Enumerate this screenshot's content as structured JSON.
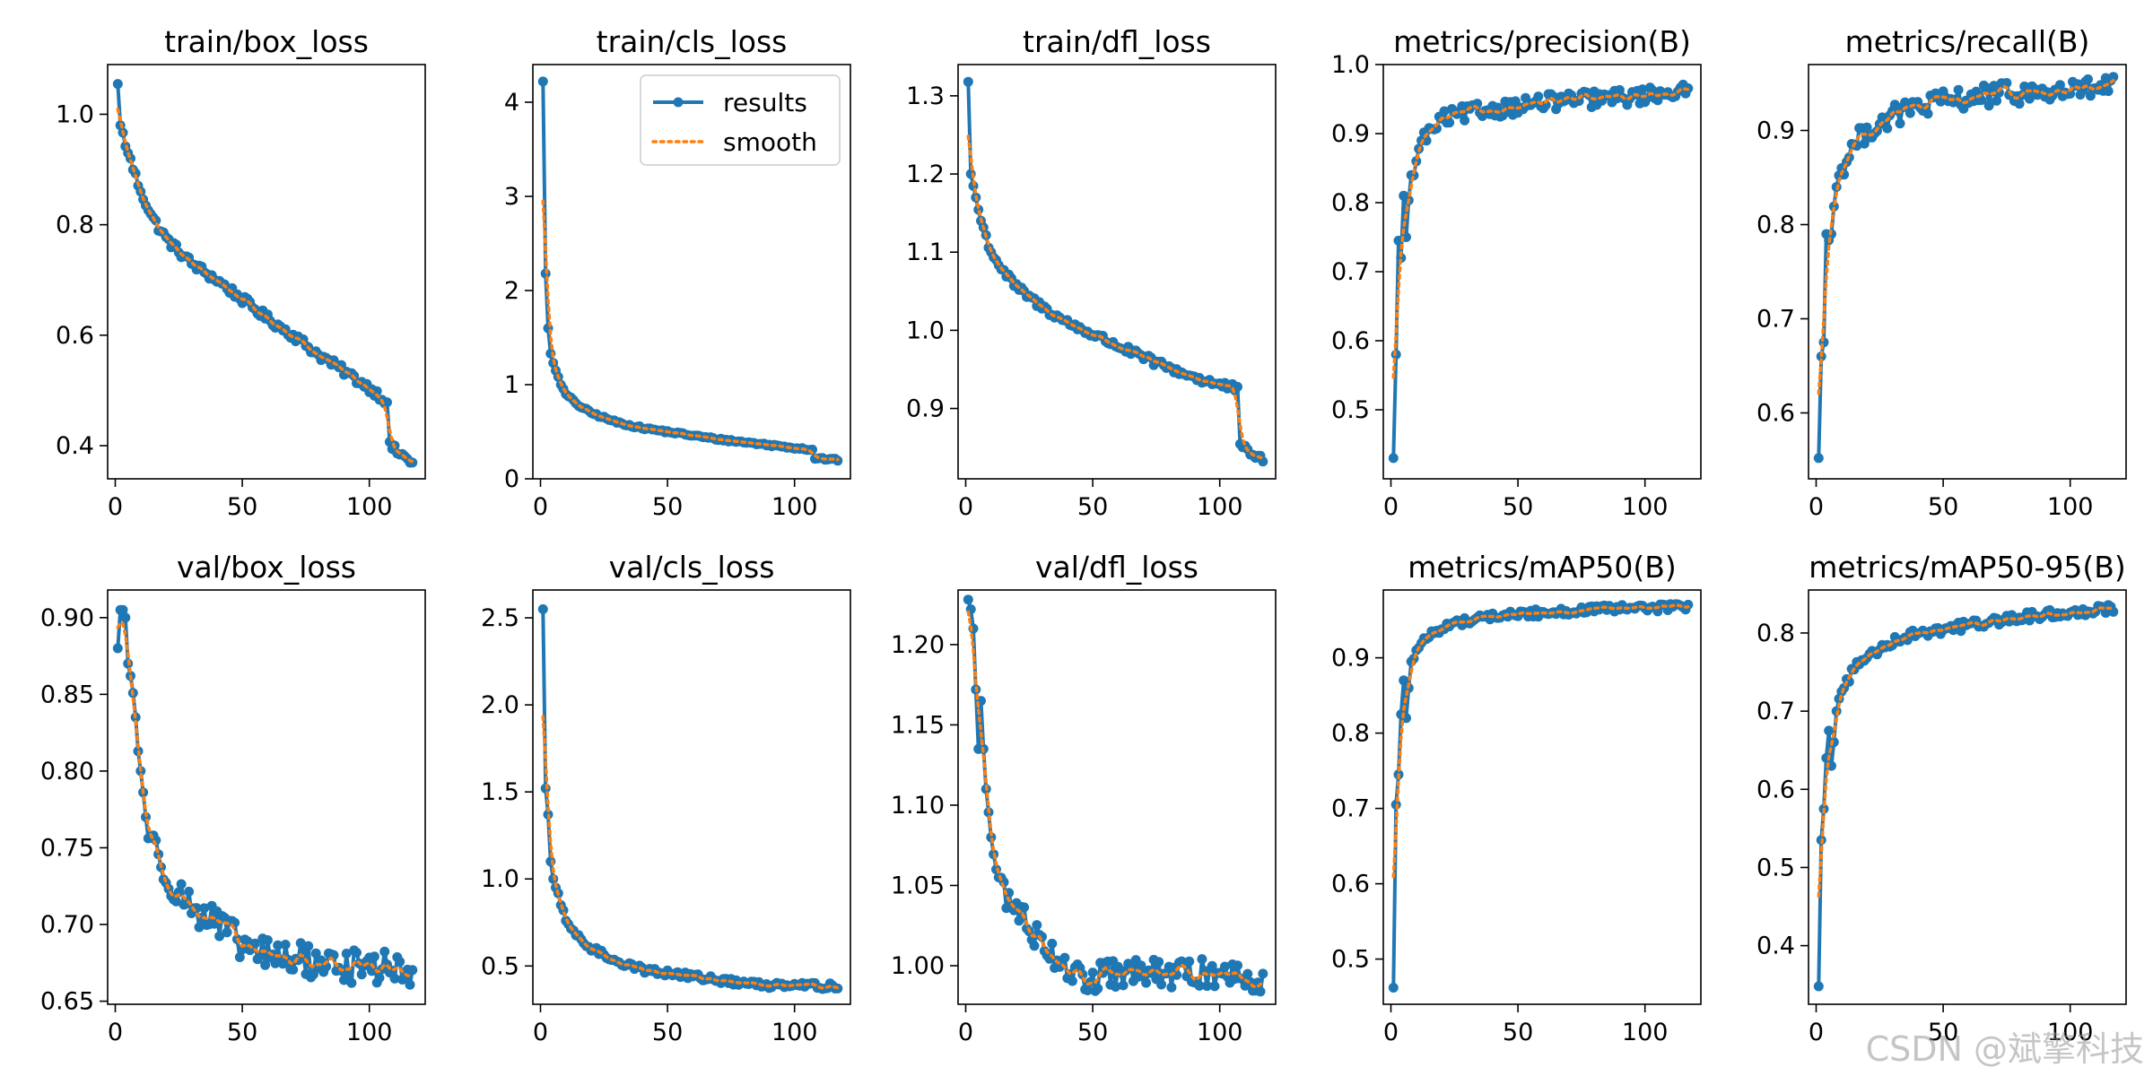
{
  "watermark": "CSDN @斌擎科技",
  "legend": {
    "results": "results",
    "smooth": "smooth"
  },
  "colors": {
    "results": "#1f77b4",
    "smooth": "#ff7f0e"
  },
  "chart_data": [
    {
      "type": "line",
      "title": "train/box_loss",
      "xlim": [
        -3,
        122
      ],
      "ylim": [
        0.34,
        1.09
      ],
      "xticks": [
        0,
        50,
        100
      ],
      "yticks": [
        0.4,
        0.6,
        0.8,
        1.0
      ],
      "ytick_labels": [
        "0.4",
        "0.6",
        "0.8",
        "1.0"
      ],
      "decay": "linear",
      "final": 0.37,
      "anchors": [
        [
          1,
          1.055
        ],
        [
          2,
          0.98
        ],
        [
          5,
          0.93
        ],
        [
          10,
          0.86
        ],
        [
          15,
          0.81
        ],
        [
          20,
          0.775
        ],
        [
          30,
          0.73
        ],
        [
          40,
          0.7
        ],
        [
          50,
          0.665
        ],
        [
          60,
          0.63
        ],
        [
          70,
          0.6
        ],
        [
          80,
          0.565
        ],
        [
          90,
          0.535
        ],
        [
          100,
          0.505
        ],
        [
          107,
          0.48
        ],
        [
          108,
          0.4
        ],
        [
          112,
          0.385
        ],
        [
          117,
          0.37
        ]
      ],
      "noise": 0.008,
      "n_epochs": 117
    },
    {
      "type": "line",
      "title": "train/cls_loss",
      "xlim": [
        -3,
        122
      ],
      "ylim": [
        0,
        4.4
      ],
      "xticks": [
        0,
        50,
        100
      ],
      "yticks": [
        0,
        1,
        2,
        3,
        4
      ],
      "ytick_labels": [
        "0",
        "1",
        "2",
        "3",
        "4"
      ],
      "legend_location": "top-right",
      "anchors": [
        [
          1,
          4.22
        ],
        [
          2,
          2.18
        ],
        [
          3,
          1.6
        ],
        [
          4,
          1.33
        ],
        [
          6,
          1.15
        ],
        [
          8,
          1.0
        ],
        [
          10,
          0.9
        ],
        [
          15,
          0.78
        ],
        [
          20,
          0.7
        ],
        [
          30,
          0.6
        ],
        [
          40,
          0.54
        ],
        [
          50,
          0.5
        ],
        [
          60,
          0.46
        ],
        [
          70,
          0.42
        ],
        [
          80,
          0.39
        ],
        [
          90,
          0.36
        ],
        [
          100,
          0.33
        ],
        [
          107,
          0.31
        ],
        [
          108,
          0.22
        ],
        [
          117,
          0.2
        ]
      ],
      "noise": 0.012,
      "n_epochs": 117
    },
    {
      "type": "line",
      "title": "train/dfl_loss",
      "xlim": [
        -3,
        122
      ],
      "ylim": [
        0.81,
        1.34
      ],
      "xticks": [
        0,
        50,
        100
      ],
      "yticks": [
        0.9,
        1.0,
        1.1,
        1.2,
        1.3
      ],
      "ytick_labels": [
        "0.9",
        "1.0",
        "1.1",
        "1.2",
        "1.3"
      ],
      "anchors": [
        [
          1,
          1.318
        ],
        [
          2,
          1.2
        ],
        [
          4,
          1.17
        ],
        [
          6,
          1.14
        ],
        [
          10,
          1.1
        ],
        [
          15,
          1.075
        ],
        [
          20,
          1.055
        ],
        [
          30,
          1.03
        ],
        [
          40,
          1.01
        ],
        [
          50,
          0.995
        ],
        [
          60,
          0.98
        ],
        [
          70,
          0.965
        ],
        [
          80,
          0.952
        ],
        [
          90,
          0.94
        ],
        [
          100,
          0.93
        ],
        [
          107,
          0.925
        ],
        [
          108,
          0.85
        ],
        [
          112,
          0.845
        ],
        [
          117,
          0.832
        ]
      ],
      "noise": 0.005,
      "n_epochs": 117
    },
    {
      "type": "line",
      "title": "metrics/precision(B)",
      "xlim": [
        -3,
        122
      ],
      "ylim": [
        0.4,
        1.0
      ],
      "xticks": [
        0,
        50,
        100
      ],
      "yticks": [
        0.5,
        0.6,
        0.7,
        0.8,
        0.9,
        1.0
      ],
      "ytick_labels": [
        "0.5",
        "0.6",
        "0.7",
        "0.8",
        "0.9",
        "1.0"
      ],
      "anchors": [
        [
          1,
          0.43
        ],
        [
          2,
          0.58
        ],
        [
          3,
          0.745
        ],
        [
          4,
          0.72
        ],
        [
          5,
          0.81
        ],
        [
          6,
          0.75
        ],
        [
          8,
          0.84
        ],
        [
          10,
          0.86
        ],
        [
          12,
          0.89
        ],
        [
          15,
          0.9
        ],
        [
          20,
          0.92
        ],
        [
          30,
          0.93
        ],
        [
          40,
          0.935
        ],
        [
          50,
          0.94
        ],
        [
          60,
          0.945
        ],
        [
          70,
          0.948
        ],
        [
          80,
          0.95
        ],
        [
          90,
          0.952
        ],
        [
          100,
          0.955
        ],
        [
          110,
          0.962
        ],
        [
          117,
          0.958
        ]
      ],
      "noise": 0.012,
      "n_epochs": 117
    },
    {
      "type": "line",
      "title": "metrics/recall(B)",
      "xlim": [
        -3,
        122
      ],
      "ylim": [
        0.53,
        0.97
      ],
      "xticks": [
        0,
        50,
        100
      ],
      "yticks": [
        0.6,
        0.7,
        0.8,
        0.9
      ],
      "ytick_labels": [
        "0.6",
        "0.7",
        "0.8",
        "0.9"
      ],
      "anchors": [
        [
          1,
          0.552
        ],
        [
          2,
          0.66
        ],
        [
          3,
          0.675
        ],
        [
          4,
          0.79
        ],
        [
          6,
          0.79
        ],
        [
          8,
          0.84
        ],
        [
          10,
          0.86
        ],
        [
          15,
          0.885
        ],
        [
          20,
          0.9
        ],
        [
          30,
          0.915
        ],
        [
          40,
          0.925
        ],
        [
          50,
          0.93
        ],
        [
          60,
          0.935
        ],
        [
          70,
          0.938
        ],
        [
          80,
          0.94
        ],
        [
          90,
          0.94
        ],
        [
          100,
          0.942
        ],
        [
          110,
          0.945
        ],
        [
          117,
          0.948
        ]
      ],
      "noise": 0.012,
      "n_epochs": 117
    },
    {
      "type": "line",
      "title": "val/box_loss",
      "xlim": [
        -3,
        122
      ],
      "ylim": [
        0.648,
        0.918
      ],
      "xticks": [
        0,
        50,
        100
      ],
      "yticks": [
        0.65,
        0.7,
        0.75,
        0.8,
        0.85,
        0.9
      ],
      "ytick_labels": [
        "0.65",
        "0.70",
        "0.75",
        "0.80",
        "0.85",
        "0.90"
      ],
      "anchors": [
        [
          1,
          0.88
        ],
        [
          2,
          0.905
        ],
        [
          3,
          0.905
        ],
        [
          4,
          0.9
        ],
        [
          5,
          0.87
        ],
        [
          6,
          0.862
        ],
        [
          8,
          0.835
        ],
        [
          10,
          0.8
        ],
        [
          12,
          0.77
        ],
        [
          15,
          0.75
        ],
        [
          20,
          0.735
        ],
        [
          25,
          0.72
        ],
        [
          30,
          0.712
        ],
        [
          40,
          0.7
        ],
        [
          50,
          0.686
        ],
        [
          60,
          0.68
        ],
        [
          70,
          0.678
        ],
        [
          80,
          0.675
        ],
        [
          90,
          0.673
        ],
        [
          100,
          0.672
        ],
        [
          110,
          0.672
        ],
        [
          117,
          0.665
        ]
      ],
      "noise": 0.011,
      "n_epochs": 117
    },
    {
      "type": "line",
      "title": "val/cls_loss",
      "xlim": [
        -3,
        122
      ],
      "ylim": [
        0.28,
        2.66
      ],
      "xticks": [
        0,
        50,
        100
      ],
      "yticks": [
        0.5,
        1.0,
        1.5,
        2.0,
        2.5
      ],
      "ytick_labels": [
        "0.5",
        "1.0",
        "1.5",
        "2.0",
        "2.5"
      ],
      "anchors": [
        [
          1,
          2.55
        ],
        [
          2,
          1.52
        ],
        [
          3,
          1.37
        ],
        [
          4,
          1.1
        ],
        [
          5,
          1.0
        ],
        [
          6,
          0.95
        ],
        [
          8,
          0.85
        ],
        [
          10,
          0.76
        ],
        [
          15,
          0.66
        ],
        [
          20,
          0.6
        ],
        [
          30,
          0.53
        ],
        [
          40,
          0.48
        ],
        [
          50,
          0.46
        ],
        [
          60,
          0.44
        ],
        [
          70,
          0.42
        ],
        [
          80,
          0.4
        ],
        [
          90,
          0.39
        ],
        [
          100,
          0.4
        ],
        [
          110,
          0.385
        ],
        [
          117,
          0.38
        ]
      ],
      "noise": 0.018,
      "n_epochs": 117
    },
    {
      "type": "line",
      "title": "val/dfl_loss",
      "xlim": [
        -3,
        122
      ],
      "ylim": [
        0.976,
        1.234
      ],
      "xticks": [
        0,
        50,
        100
      ],
      "yticks": [
        1.0,
        1.05,
        1.1,
        1.15,
        1.2
      ],
      "ytick_labels": [
        "1.00",
        "1.05",
        "1.10",
        "1.15",
        "1.20"
      ],
      "anchors": [
        [
          1,
          1.228
        ],
        [
          2,
          1.222
        ],
        [
          3,
          1.21
        ],
        [
          4,
          1.172
        ],
        [
          5,
          1.135
        ],
        [
          6,
          1.165
        ],
        [
          8,
          1.11
        ],
        [
          10,
          1.08
        ],
        [
          12,
          1.06
        ],
        [
          15,
          1.045
        ],
        [
          20,
          1.035
        ],
        [
          30,
          1.015
        ],
        [
          40,
          1.0
        ],
        [
          45,
          0.99
        ],
        [
          50,
          0.992
        ],
        [
          60,
          0.995
        ],
        [
          70,
          0.995
        ],
        [
          80,
          0.995
        ],
        [
          90,
          0.995
        ],
        [
          100,
          0.996
        ],
        [
          110,
          0.994
        ],
        [
          117,
          0.992
        ]
      ],
      "noise": 0.009,
      "n_epochs": 117
    },
    {
      "type": "line",
      "title": "metrics/mAP50(B)",
      "xlim": [
        -3,
        122
      ],
      "ylim": [
        0.44,
        0.99
      ],
      "xticks": [
        0,
        50,
        100
      ],
      "yticks": [
        0.5,
        0.6,
        0.7,
        0.8,
        0.9
      ],
      "ytick_labels": [
        "0.5",
        "0.6",
        "0.7",
        "0.8",
        "0.9"
      ],
      "anchors": [
        [
          1,
          0.462
        ],
        [
          2,
          0.705
        ],
        [
          3,
          0.745
        ],
        [
          4,
          0.825
        ],
        [
          5,
          0.87
        ],
        [
          6,
          0.82
        ],
        [
          8,
          0.895
        ],
        [
          10,
          0.91
        ],
        [
          15,
          0.93
        ],
        [
          20,
          0.94
        ],
        [
          30,
          0.95
        ],
        [
          40,
          0.955
        ],
        [
          50,
          0.958
        ],
        [
          60,
          0.96
        ],
        [
          70,
          0.962
        ],
        [
          80,
          0.964
        ],
        [
          90,
          0.965
        ],
        [
          100,
          0.966
        ],
        [
          110,
          0.967
        ],
        [
          117,
          0.968
        ]
      ],
      "noise": 0.005,
      "n_epochs": 117
    },
    {
      "type": "line",
      "title": "metrics/mAP50-95(B)",
      "xlim": [
        -3,
        122
      ],
      "ylim": [
        0.325,
        0.855
      ],
      "xticks": [
        0,
        50,
        100
      ],
      "yticks": [
        0.4,
        0.5,
        0.6,
        0.7,
        0.8
      ],
      "ytick_labels": [
        "0.4",
        "0.5",
        "0.6",
        "0.7",
        "0.8"
      ],
      "anchors": [
        [
          1,
          0.348
        ],
        [
          2,
          0.535
        ],
        [
          3,
          0.575
        ],
        [
          4,
          0.64
        ],
        [
          5,
          0.675
        ],
        [
          6,
          0.63
        ],
        [
          8,
          0.7
        ],
        [
          10,
          0.725
        ],
        [
          15,
          0.755
        ],
        [
          20,
          0.77
        ],
        [
          30,
          0.79
        ],
        [
          40,
          0.8
        ],
        [
          50,
          0.805
        ],
        [
          60,
          0.81
        ],
        [
          70,
          0.815
        ],
        [
          80,
          0.82
        ],
        [
          90,
          0.823
        ],
        [
          100,
          0.826
        ],
        [
          110,
          0.83
        ],
        [
          117,
          0.833
        ]
      ],
      "noise": 0.006,
      "n_epochs": 117
    }
  ]
}
